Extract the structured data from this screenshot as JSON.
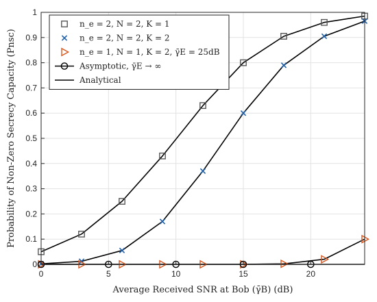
{
  "chart_data": {
    "type": "line",
    "xlabel": "Average Received SNR at Bob ($\\bar{\\gamma}_B$) (dB)",
    "ylabel": "Probability of Non-Zero Secrecy Capacity ($P_{nsc}$)",
    "xlabel_display": "Average Received SNR at Bob (γ̄B) (dB)",
    "ylabel_display": "Probability of Non-Zero Secrecy Capacity (Pnsc)",
    "xlim": [
      0,
      24
    ],
    "ylim": [
      0,
      1
    ],
    "xticks": [
      0,
      5,
      10,
      15,
      20
    ],
    "yticks": [
      0,
      0.1,
      0.2,
      0.3,
      0.4,
      0.5,
      0.6,
      0.7,
      0.8,
      0.9,
      1
    ],
    "ytick_labels": [
      "0",
      "0.1",
      "0.2",
      "0.3",
      "0.4",
      "0.5",
      "0.6",
      "0.7",
      "0.8",
      "0.9",
      "1"
    ],
    "grid": true,
    "legend_position": "top-left",
    "series": [
      {
        "name": "n_e = 2, N = 2, K = 1",
        "marker": "square",
        "color": "#555555",
        "points": [
          [
            0,
            0.05
          ],
          [
            3,
            0.12
          ],
          [
            6,
            0.25
          ],
          [
            9,
            0.43
          ],
          [
            12,
            0.63
          ],
          [
            15,
            0.8
          ],
          [
            18,
            0.905
          ],
          [
            21,
            0.96
          ],
          [
            24,
            0.985
          ]
        ]
      },
      {
        "name": "n_e = 2, N = 2, K = 2",
        "marker": "x",
        "color": "#1f5fa8",
        "points": [
          [
            0,
            0.002
          ],
          [
            3,
            0.012
          ],
          [
            6,
            0.055
          ],
          [
            9,
            0.17
          ],
          [
            12,
            0.37
          ],
          [
            15,
            0.6
          ],
          [
            18,
            0.79
          ],
          [
            21,
            0.905
          ],
          [
            24,
            0.965
          ]
        ]
      },
      {
        "name": "n_e = 1, N = 1, K = 2, γ̄E = 25dB",
        "marker": "triangle-right",
        "color": "#d9541a",
        "points": [
          [
            0,
            0.0
          ],
          [
            3,
            0.0
          ],
          [
            6,
            0.0
          ],
          [
            9,
            0.0
          ],
          [
            12,
            0.0
          ],
          [
            15,
            0.0
          ],
          [
            18,
            0.002
          ],
          [
            21,
            0.02
          ],
          [
            24,
            0.1
          ]
        ]
      },
      {
        "name": "Asymptotic, γ̄E → ∞",
        "marker": "circle",
        "color": "#000000",
        "points": [
          [
            0,
            0.0
          ],
          [
            5,
            0.0
          ],
          [
            10,
            0.0
          ],
          [
            15,
            0.0
          ],
          [
            20,
            0.0
          ]
        ]
      },
      {
        "name": "Analytical",
        "marker": "none",
        "color": "#000000"
      }
    ],
    "analytical_curves": [
      {
        "name": "analytical-curve-k1",
        "points": [
          [
            0,
            0.05
          ],
          [
            3,
            0.12
          ],
          [
            6,
            0.25
          ],
          [
            9,
            0.43
          ],
          [
            12,
            0.63
          ],
          [
            15,
            0.8
          ],
          [
            18,
            0.905
          ],
          [
            21,
            0.96
          ],
          [
            24,
            0.985
          ]
        ]
      },
      {
        "name": "analytical-curve-k2",
        "points": [
          [
            0,
            0.002
          ],
          [
            3,
            0.012
          ],
          [
            6,
            0.055
          ],
          [
            9,
            0.17
          ],
          [
            12,
            0.37
          ],
          [
            15,
            0.6
          ],
          [
            18,
            0.79
          ],
          [
            21,
            0.905
          ],
          [
            24,
            0.965
          ]
        ]
      },
      {
        "name": "analytical-curve-ge25",
        "points": [
          [
            0,
            0.0
          ],
          [
            15,
            0.0
          ],
          [
            18,
            0.002
          ],
          [
            21,
            0.02
          ],
          [
            24,
            0.1
          ]
        ]
      },
      {
        "name": "analytical-curve-asymptotic",
        "points": [
          [
            0,
            0.0
          ],
          [
            24,
            0.0
          ]
        ]
      }
    ]
  }
}
